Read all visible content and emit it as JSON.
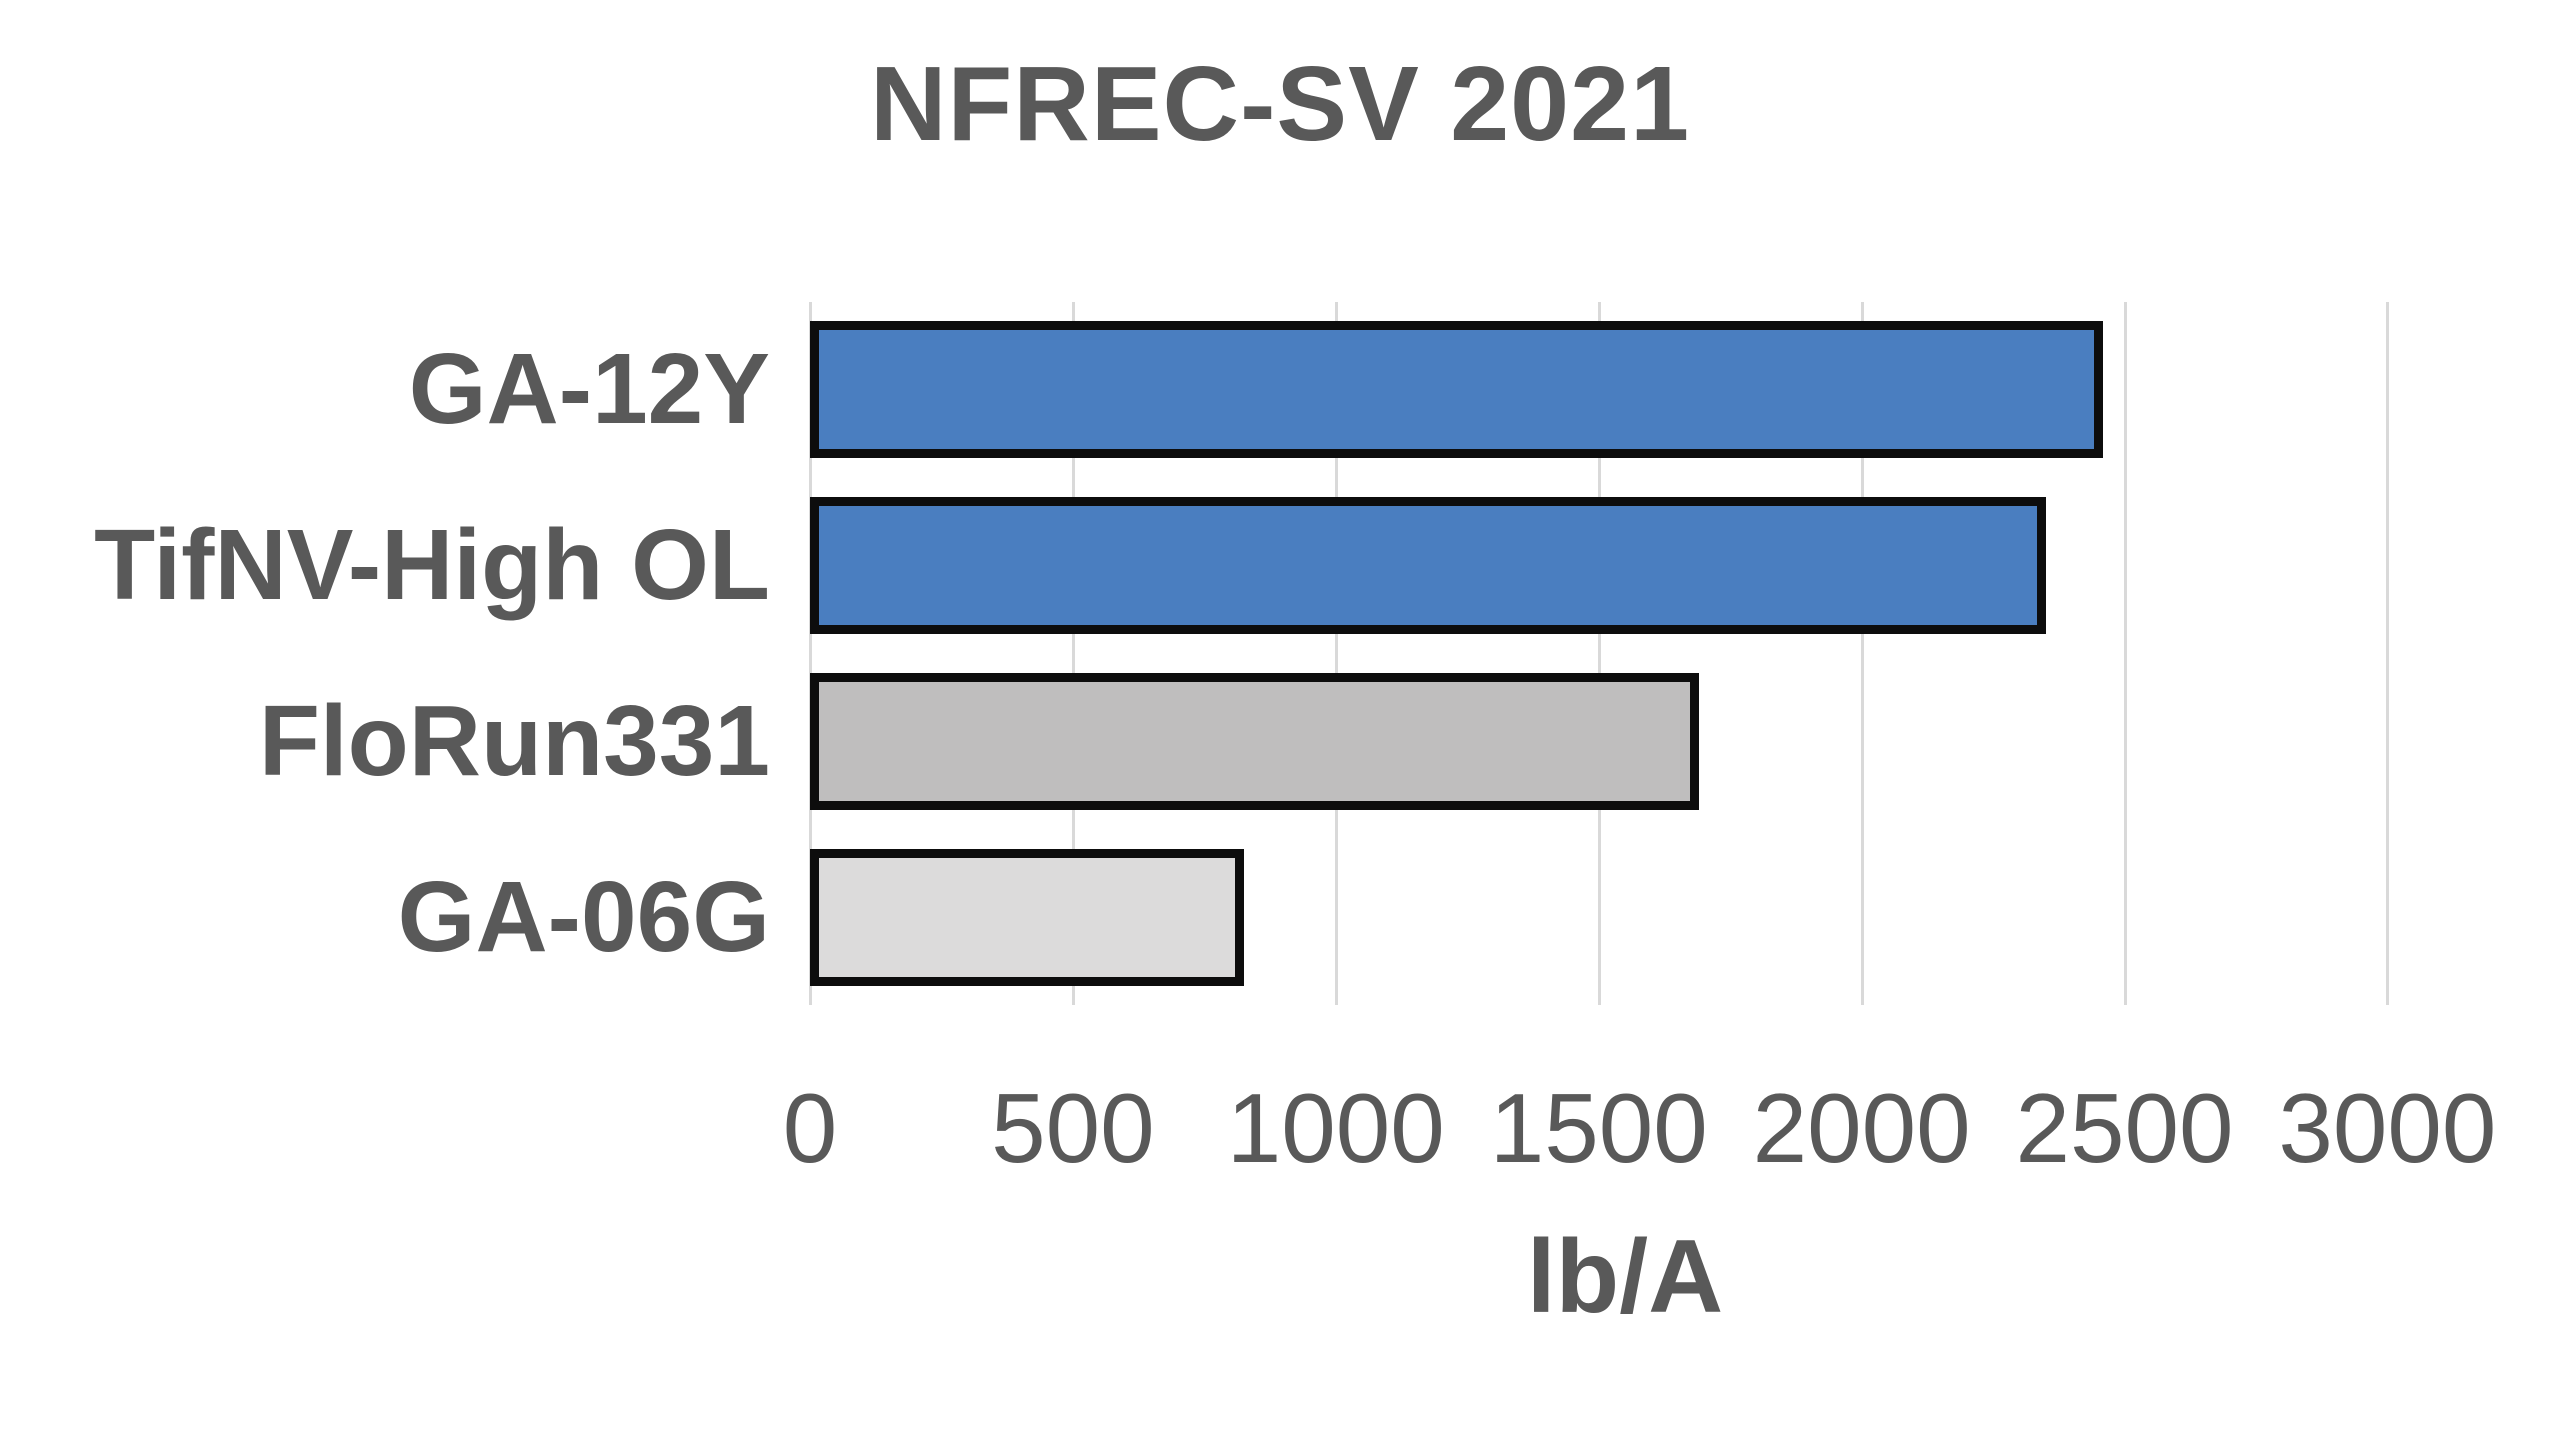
{
  "chart_data": {
    "type": "bar",
    "orientation": "horizontal",
    "title": "NFREC-SV 2021",
    "categories": [
      "GA-12Y",
      "TifNV-High OL",
      "FloRun331",
      "GA-06G"
    ],
    "values": [
      2460,
      2350,
      1690,
      825
    ],
    "bar_colors": [
      "#4A7EC0",
      "#4A7EC0",
      "#BFBEBE",
      "#DCDBDB"
    ],
    "bar_border_color": "#0D0D0D",
    "xlabel": "lb/A",
    "ylabel": "",
    "x_ticks": [
      0,
      500,
      1000,
      1500,
      2000,
      2500,
      3000
    ],
    "xlim": [
      0,
      3100
    ],
    "grid": "vertical",
    "gridline_color": "#D9D9D9",
    "text_color": "#595959",
    "legend": "none"
  }
}
